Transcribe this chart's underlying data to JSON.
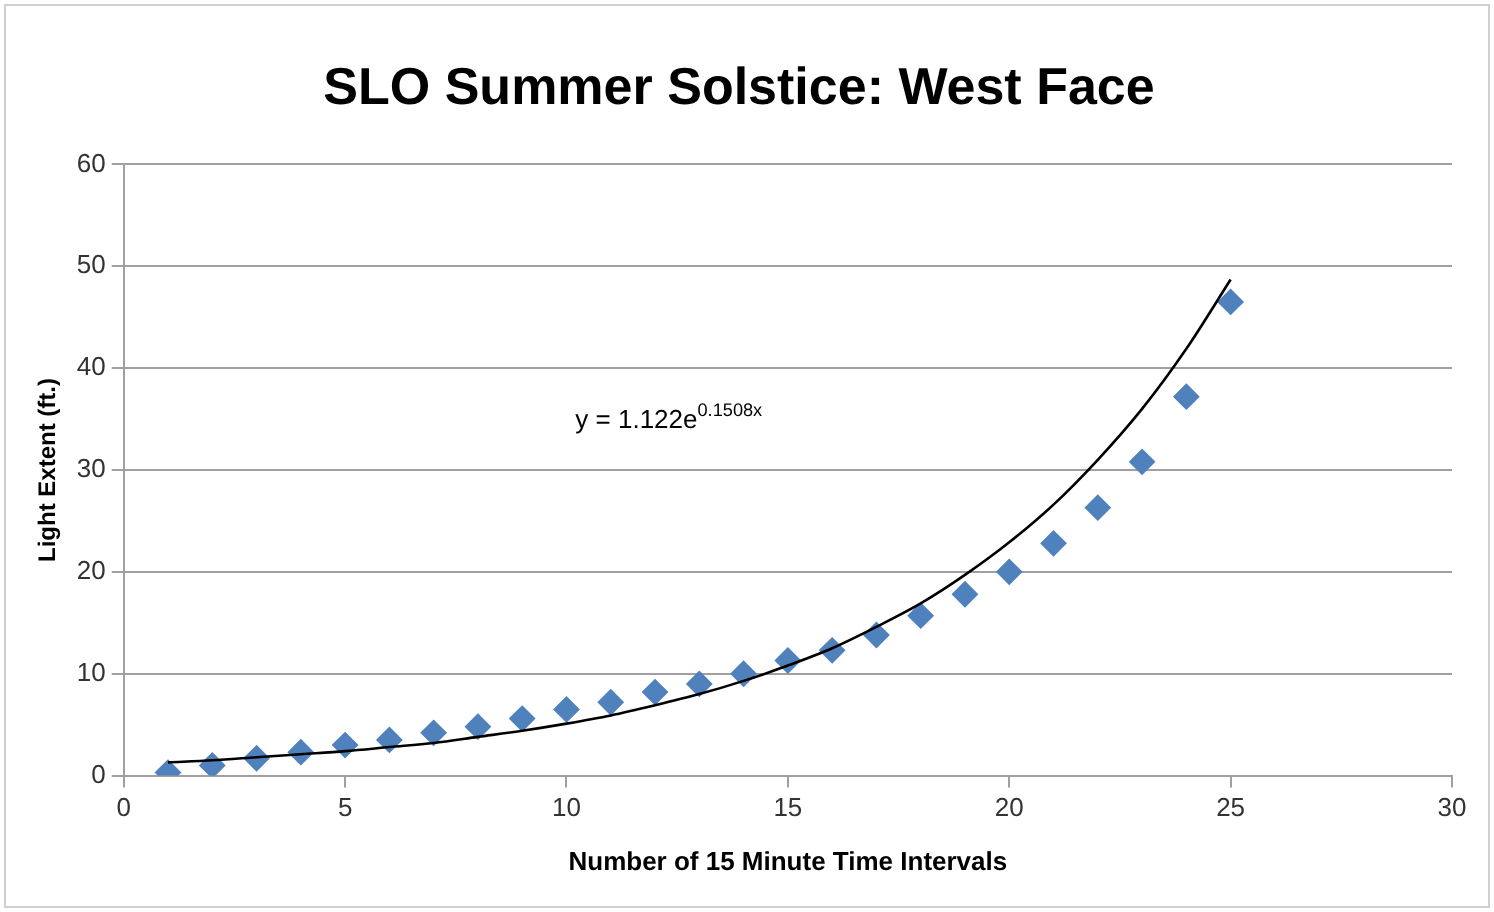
{
  "chart_data": {
    "type": "scatter",
    "title": "SLO Summer Solstice: West Face",
    "xlabel": "Number of 15 Minute Time Intervals",
    "ylabel": "Light Extent (ft.)",
    "xlim": [
      0,
      30
    ],
    "xticks": [
      0,
      5,
      10,
      15,
      20,
      25,
      30
    ],
    "ylim": [
      0,
      60
    ],
    "yticks": [
      0,
      10,
      20,
      30,
      40,
      50,
      60
    ],
    "grid": "y",
    "legend": false,
    "marker": "diamond",
    "annotations": [
      "y = 1.122e$^{0.1508x}$"
    ],
    "series": [
      {
        "type": "scatter",
        "color": "#4f81bd",
        "x": [
          1,
          2,
          3,
          4,
          5,
          6,
          7,
          8,
          9,
          10,
          11,
          12,
          13,
          14,
          15,
          16,
          17,
          18,
          19,
          20,
          21,
          22,
          23,
          24,
          25
        ],
        "values": [
          0.3,
          1,
          1.7,
          2.3,
          3,
          3.5,
          4.2,
          4.8,
          5.6,
          6.5,
          7.2,
          8.2,
          9,
          10,
          11.3,
          12.3,
          13.8,
          15.7,
          17.8,
          20,
          22.8,
          26.3,
          30.8,
          37.2,
          46.5
        ]
      },
      {
        "type": "line",
        "color": "#000000",
        "marker": "none",
        "x": [
          1,
          2,
          3,
          4,
          5,
          6,
          7,
          8,
          9,
          10,
          11,
          12,
          13,
          14,
          15,
          16,
          17,
          18,
          19,
          20,
          21,
          22,
          23,
          24,
          25
        ],
        "values": [
          1.3,
          1.5,
          1.8,
          2.1,
          2.4,
          2.8,
          3.2,
          3.8,
          4.4,
          5.1,
          5.9,
          6.9,
          8,
          9.3,
          10.8,
          12.5,
          14.6,
          16.9,
          19.7,
          22.9,
          26.6,
          31,
          36,
          41.9,
          48.7
        ]
      }
    ]
  }
}
